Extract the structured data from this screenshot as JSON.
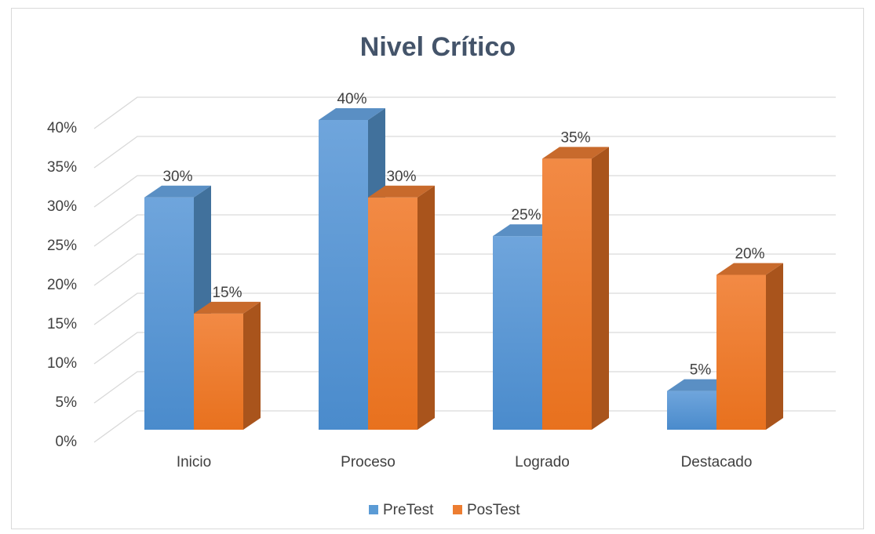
{
  "chart_data": {
    "type": "bar3d",
    "title": "Nivel Crítico",
    "categories": [
      "Inicio",
      "Proceso",
      "Logrado",
      "Destacado"
    ],
    "series": [
      {
        "name": "PreTest",
        "color": "#5b9bd5",
        "values": [
          30,
          40,
          25,
          5
        ],
        "value_labels": [
          "30%",
          "40%",
          "25%",
          "5%"
        ]
      },
      {
        "name": "PosTest",
        "color": "#ed7d31",
        "values": [
          15,
          30,
          35,
          20
        ],
        "value_labels": [
          "15%",
          "30%",
          "35%",
          "20%"
        ]
      }
    ],
    "ylim": [
      0,
      40
    ],
    "yticks": [
      {
        "value": 0,
        "label": "0%"
      },
      {
        "value": 5,
        "label": "5%"
      },
      {
        "value": 10,
        "label": "10%"
      },
      {
        "value": 15,
        "label": "15%"
      },
      {
        "value": 20,
        "label": "20%"
      },
      {
        "value": 25,
        "label": "25%"
      },
      {
        "value": 30,
        "label": "30%"
      },
      {
        "value": 35,
        "label": "35%"
      },
      {
        "value": 40,
        "label": "40%"
      }
    ],
    "grid": true,
    "legend": "bottom"
  }
}
